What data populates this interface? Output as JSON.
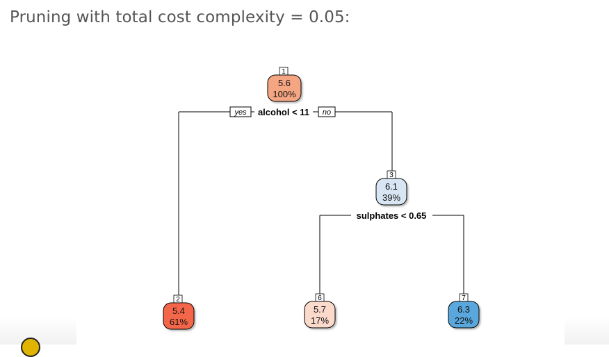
{
  "title": "Pruning with total cost complexity = 0.05:",
  "tree": {
    "nodes": [
      {
        "id": "1",
        "value": "5.6",
        "percent": "100%",
        "color": "#f4a582"
      },
      {
        "id": "3",
        "value": "6.1",
        "percent": "39%",
        "color": "#d8e6f3"
      },
      {
        "id": "2",
        "value": "5.4",
        "percent": "61%",
        "color": "#f4664a"
      },
      {
        "id": "6",
        "value": "5.7",
        "percent": "17%",
        "color": "#fbd9cb"
      },
      {
        "id": "7",
        "value": "6.3",
        "percent": "22%",
        "color": "#5aa7dd"
      }
    ],
    "splits": [
      {
        "label": "alcohol < 11",
        "yes": "yes",
        "no": "no"
      },
      {
        "label": "sulphates < 0.65"
      }
    ]
  }
}
